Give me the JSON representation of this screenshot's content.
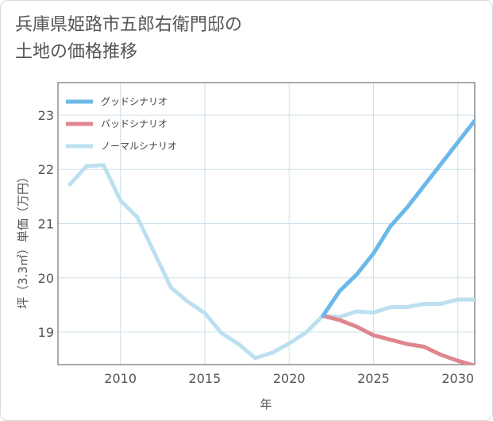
{
  "title_line1": "兵庫県姫路市五郎右衛門邸の",
  "title_line2": "土地の価格推移",
  "chart_data": {
    "type": "line",
    "xlabel": "年",
    "ylabel": "坪（3.3㎡）単価（万円）",
    "xlim": [
      2006.3,
      2031
    ],
    "ylim": [
      18.4,
      23.6
    ],
    "xticks": [
      2010,
      2015,
      2020,
      2025,
      2030
    ],
    "yticks": [
      19,
      20,
      21,
      22,
      23
    ],
    "grid": true,
    "legend_position": "top-left",
    "series": [
      {
        "name": "グッドシナリオ",
        "color": "#6bb8ea",
        "x": [
          2022,
          2023,
          2024,
          2025,
          2026,
          2027,
          2028,
          2029,
          2030,
          2031
        ],
        "y": [
          19.3,
          19.76,
          20.06,
          20.45,
          20.95,
          21.3,
          21.7,
          22.1,
          22.5,
          22.9
        ]
      },
      {
        "name": "バッドシナリオ",
        "color": "#e0868f",
        "x": [
          2022,
          2023,
          2024,
          2025,
          2026,
          2027,
          2028,
          2029,
          2030,
          2031
        ],
        "y": [
          19.3,
          19.22,
          19.1,
          18.94,
          18.86,
          18.78,
          18.73,
          18.58,
          18.47,
          18.38
        ]
      },
      {
        "name": "ノーマルシナリオ",
        "color": "#bde0f0",
        "x": [
          2007,
          2008,
          2009,
          2010,
          2011,
          2012,
          2013,
          2014,
          2015,
          2016,
          2017,
          2018,
          2019,
          2020,
          2021,
          2022,
          2023,
          2024,
          2025,
          2026,
          2027,
          2028,
          2029,
          2030,
          2031
        ],
        "y": [
          21.72,
          22.06,
          22.08,
          21.43,
          21.12,
          20.47,
          19.82,
          19.56,
          19.35,
          18.98,
          18.78,
          18.52,
          18.62,
          18.79,
          18.99,
          19.3,
          19.28,
          19.38,
          19.36,
          19.46,
          19.46,
          19.52,
          19.52,
          19.6,
          19.6
        ]
      }
    ]
  }
}
